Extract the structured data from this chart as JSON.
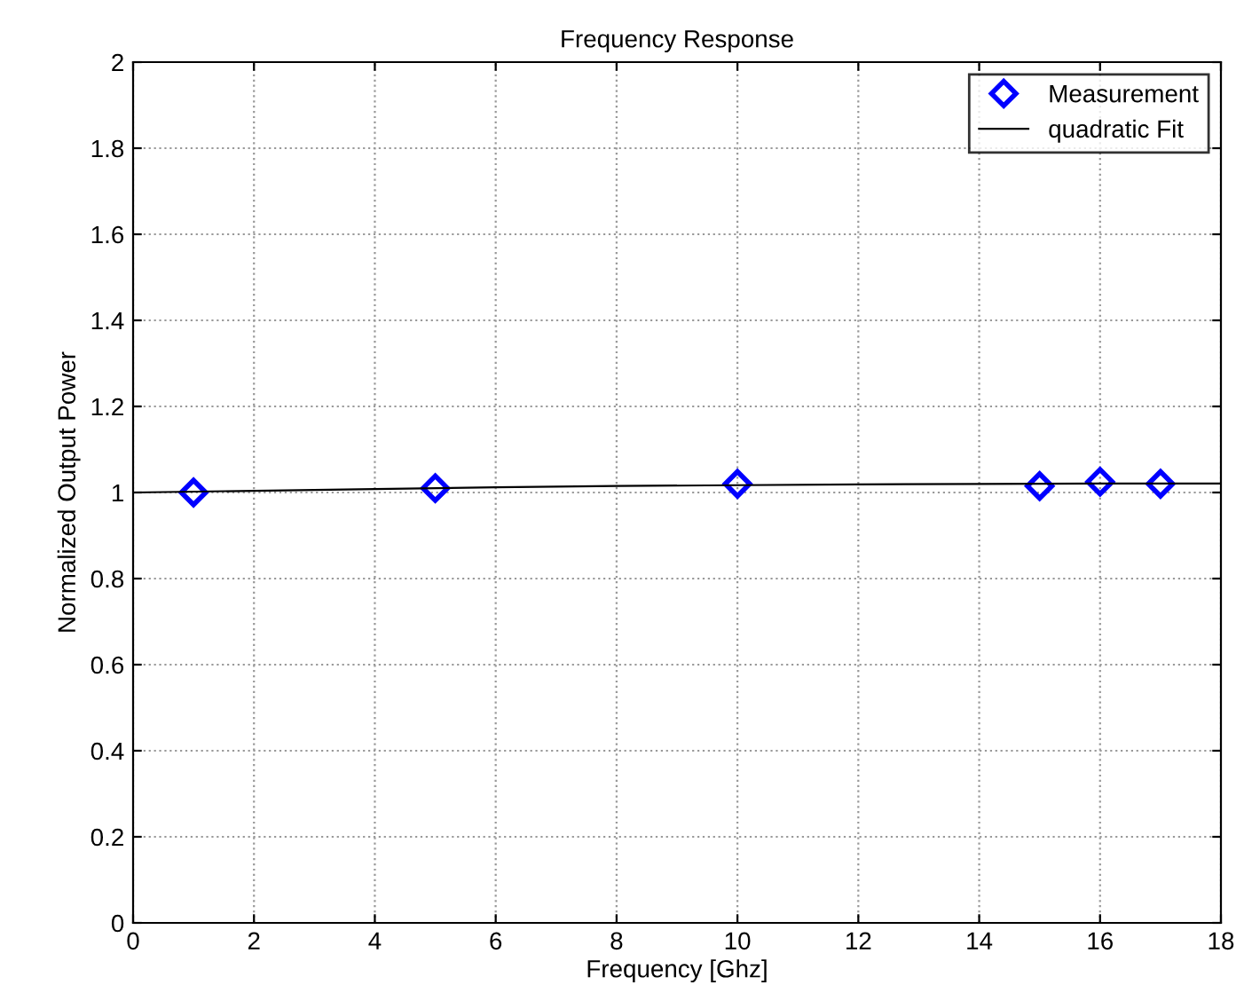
{
  "chart_data": {
    "type": "scatter",
    "title": "Frequency Response",
    "xlabel": "Frequency [Ghz]",
    "ylabel": "Normalized Output Power",
    "series": [
      {
        "name": "Measurement",
        "color": "#0000ff",
        "marker": "diamond",
        "x": [
          1,
          5,
          10,
          15,
          16,
          17
        ],
        "values": [
          1.0,
          1.01,
          1.02,
          1.015,
          1.025,
          1.02
        ]
      },
      {
        "name": "quadratic Fit",
        "type": "line",
        "color": "#000000",
        "marker": "none",
        "x": [
          0,
          2,
          4,
          6,
          8,
          10,
          12,
          14,
          16,
          18
        ],
        "values": [
          1.0,
          1.004,
          1.008,
          1.012,
          1.015,
          1.017,
          1.019,
          1.02,
          1.021,
          1.021
        ]
      }
    ],
    "xlim": [
      0,
      18
    ],
    "xticks": [
      0,
      2,
      4,
      6,
      8,
      10,
      12,
      14,
      16,
      18
    ],
    "ylim": [
      0,
      2
    ],
    "yticks": [
      0,
      0.2,
      0.4,
      0.6,
      0.8,
      1,
      1.2,
      1.4,
      1.6,
      1.8,
      2
    ],
    "grid": true,
    "legend": "top right"
  }
}
